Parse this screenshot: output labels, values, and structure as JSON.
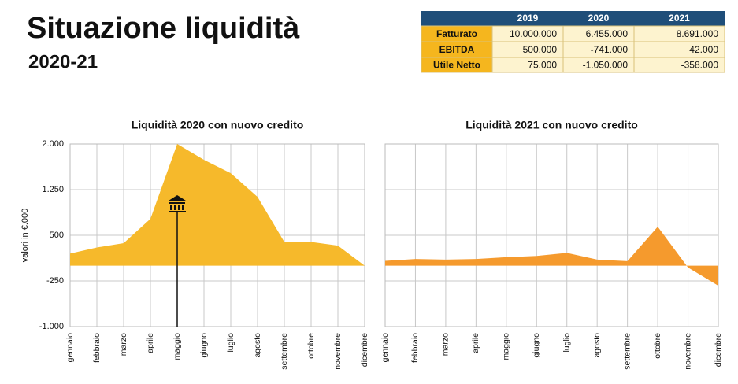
{
  "header": {
    "title": "Situazione liquidità",
    "subtitle": "2020-21"
  },
  "table": {
    "columns": [
      "2019",
      "2020",
      "2021"
    ],
    "rows": [
      {
        "label": "Fatturato",
        "values": [
          "10.000.000",
          "6.455.000",
          "8.691.000"
        ]
      },
      {
        "label": "EBITDA",
        "values": [
          "500.000",
          "-741.000",
          "42.000"
        ]
      },
      {
        "label": "Utile Netto",
        "values": [
          "75.000",
          "-1.050.000",
          "-358.000"
        ]
      }
    ]
  },
  "chart_data": [
    {
      "type": "area",
      "title": "Liquidità 2020 con nuovo credito",
      "ylabel": "valori in €.000",
      "categories": [
        "gennaio",
        "febbraio",
        "marzo",
        "aprile",
        "maggio",
        "giugno",
        "luglio",
        "agosto",
        "settembre",
        "ottobre",
        "novembre",
        "dicembre"
      ],
      "values": [
        200,
        300,
        370,
        770,
        2000,
        1740,
        1520,
        1130,
        390,
        390,
        330,
        0
      ],
      "color": "#f6b92b",
      "ylim": [
        -1000,
        2000
      ],
      "yticks": [
        {
          "value": -1000,
          "label": "-1.000"
        },
        -250,
        500,
        {
          "value": 1250,
          "label": "1.250"
        },
        {
          "value": 2000,
          "label": "2.000"
        }
      ],
      "grid": true
    },
    {
      "type": "area",
      "title": "Liquidità 2021 con nuovo credito",
      "categories": [
        "gennaio",
        "febbraio",
        "marzo",
        "aprile",
        "maggio",
        "giugno",
        "luglio",
        "agosto",
        "settembre",
        "ottobre",
        "novembre",
        "dicembre"
      ],
      "values": [
        80,
        110,
        100,
        110,
        140,
        160,
        210,
        100,
        75,
        640,
        -30,
        -330
      ],
      "color": "#f59a2d",
      "ylim": [
        -1000,
        2000
      ],
      "yticks": [
        -1000,
        -250,
        500,
        1250,
        2000
      ],
      "grid": true
    }
  ]
}
